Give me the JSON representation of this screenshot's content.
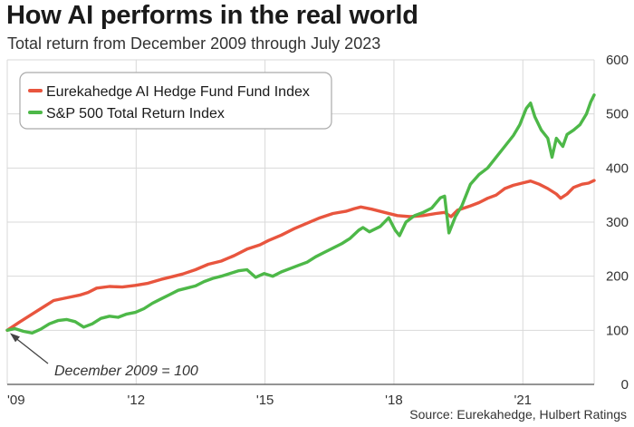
{
  "header": {
    "title": "How AI performs in the real world",
    "subtitle": "Total return from December 2009 through July 2023"
  },
  "footer": {
    "source": "Source: Eurekahedge, Hulbert Ratings"
  },
  "colors": {
    "ai_series": "#e8553e",
    "sp_series": "#4db848",
    "grid": "#d9d9d9",
    "axis": "#555555"
  },
  "chart_data": {
    "type": "line",
    "title": "How AI performs in the real world",
    "subtitle": "Total return from December 2009 through July 2023",
    "xlim": [
      2009.92,
      2023.58
    ],
    "ylim": [
      0,
      600
    ],
    "grid": true,
    "x_ticks": [
      {
        "value": 2009.92,
        "label": "'09"
      },
      {
        "value": 2012.92,
        "label": "'12"
      },
      {
        "value": 2015.92,
        "label": "'15"
      },
      {
        "value": 2018.92,
        "label": "'18"
      },
      {
        "value": 2021.92,
        "label": "'21"
      }
    ],
    "y_ticks": [
      0,
      100,
      200,
      300,
      400,
      500,
      600
    ],
    "y_axis_side": "right",
    "legend_position": "top-left",
    "annotation": "December 2009 = 100",
    "series": [
      {
        "name": "Eurekahedge AI Hedge Fund Fund Index",
        "color": "#e8553e",
        "points": [
          [
            2009.92,
            100
          ],
          [
            2010.2,
            115
          ],
          [
            2010.5,
            130
          ],
          [
            2010.8,
            145
          ],
          [
            2011.0,
            155
          ],
          [
            2011.3,
            160
          ],
          [
            2011.6,
            165
          ],
          [
            2011.8,
            170
          ],
          [
            2012.0,
            178
          ],
          [
            2012.3,
            181
          ],
          [
            2012.6,
            180
          ],
          [
            2012.9,
            183
          ],
          [
            2013.2,
            187
          ],
          [
            2013.5,
            194
          ],
          [
            2013.8,
            200
          ],
          [
            2014.0,
            204
          ],
          [
            2014.3,
            212
          ],
          [
            2014.6,
            222
          ],
          [
            2014.9,
            228
          ],
          [
            2015.2,
            238
          ],
          [
            2015.5,
            250
          ],
          [
            2015.8,
            258
          ],
          [
            2016.0,
            266
          ],
          [
            2016.3,
            276
          ],
          [
            2016.6,
            288
          ],
          [
            2016.9,
            298
          ],
          [
            2017.2,
            308
          ],
          [
            2017.5,
            316
          ],
          [
            2017.8,
            320
          ],
          [
            2018.0,
            325
          ],
          [
            2018.15,
            328
          ],
          [
            2018.4,
            324
          ],
          [
            2018.7,
            318
          ],
          [
            2019.0,
            312
          ],
          [
            2019.3,
            310
          ],
          [
            2019.6,
            312
          ],
          [
            2019.9,
            316
          ],
          [
            2020.1,
            318
          ],
          [
            2020.25,
            310
          ],
          [
            2020.4,
            322
          ],
          [
            2020.7,
            330
          ],
          [
            2020.9,
            336
          ],
          [
            2021.1,
            344
          ],
          [
            2021.3,
            350
          ],
          [
            2021.5,
            362
          ],
          [
            2021.7,
            368
          ],
          [
            2021.9,
            372
          ],
          [
            2022.1,
            376
          ],
          [
            2022.3,
            370
          ],
          [
            2022.5,
            362
          ],
          [
            2022.7,
            352
          ],
          [
            2022.8,
            344
          ],
          [
            2022.95,
            352
          ],
          [
            2023.1,
            364
          ],
          [
            2023.3,
            370
          ],
          [
            2023.45,
            372
          ],
          [
            2023.58,
            377
          ]
        ]
      },
      {
        "name": "S&P 500 Total Return Index",
        "color": "#4db848",
        "points": [
          [
            2009.92,
            100
          ],
          [
            2010.1,
            103
          ],
          [
            2010.3,
            98
          ],
          [
            2010.5,
            95
          ],
          [
            2010.7,
            102
          ],
          [
            2010.9,
            112
          ],
          [
            2011.1,
            118
          ],
          [
            2011.3,
            120
          ],
          [
            2011.5,
            116
          ],
          [
            2011.7,
            106
          ],
          [
            2011.9,
            112
          ],
          [
            2012.1,
            122
          ],
          [
            2012.3,
            126
          ],
          [
            2012.5,
            124
          ],
          [
            2012.7,
            130
          ],
          [
            2012.9,
            133
          ],
          [
            2013.1,
            140
          ],
          [
            2013.3,
            150
          ],
          [
            2013.5,
            158
          ],
          [
            2013.7,
            166
          ],
          [
            2013.9,
            174
          ],
          [
            2014.1,
            178
          ],
          [
            2014.3,
            182
          ],
          [
            2014.5,
            190
          ],
          [
            2014.7,
            196
          ],
          [
            2014.9,
            200
          ],
          [
            2015.1,
            205
          ],
          [
            2015.3,
            210
          ],
          [
            2015.5,
            212
          ],
          [
            2015.7,
            198
          ],
          [
            2015.9,
            205
          ],
          [
            2016.1,
            200
          ],
          [
            2016.3,
            208
          ],
          [
            2016.5,
            214
          ],
          [
            2016.7,
            220
          ],
          [
            2016.9,
            226
          ],
          [
            2017.1,
            236
          ],
          [
            2017.3,
            244
          ],
          [
            2017.5,
            252
          ],
          [
            2017.7,
            260
          ],
          [
            2017.9,
            270
          ],
          [
            2018.1,
            285
          ],
          [
            2018.2,
            290
          ],
          [
            2018.35,
            282
          ],
          [
            2018.6,
            292
          ],
          [
            2018.8,
            308
          ],
          [
            2018.95,
            285
          ],
          [
            2019.05,
            275
          ],
          [
            2019.2,
            300
          ],
          [
            2019.4,
            312
          ],
          [
            2019.6,
            318
          ],
          [
            2019.8,
            326
          ],
          [
            2020.0,
            345
          ],
          [
            2020.1,
            348
          ],
          [
            2020.2,
            280
          ],
          [
            2020.35,
            310
          ],
          [
            2020.5,
            330
          ],
          [
            2020.7,
            370
          ],
          [
            2020.9,
            388
          ],
          [
            2021.1,
            400
          ],
          [
            2021.3,
            420
          ],
          [
            2021.5,
            440
          ],
          [
            2021.7,
            460
          ],
          [
            2021.85,
            480
          ],
          [
            2022.0,
            510
          ],
          [
            2022.1,
            520
          ],
          [
            2022.2,
            495
          ],
          [
            2022.35,
            470
          ],
          [
            2022.5,
            455
          ],
          [
            2022.6,
            420
          ],
          [
            2022.7,
            455
          ],
          [
            2022.85,
            440
          ],
          [
            2022.95,
            462
          ],
          [
            2023.1,
            470
          ],
          [
            2023.25,
            480
          ],
          [
            2023.4,
            500
          ],
          [
            2023.5,
            522
          ],
          [
            2023.58,
            535
          ]
        ]
      }
    ]
  }
}
